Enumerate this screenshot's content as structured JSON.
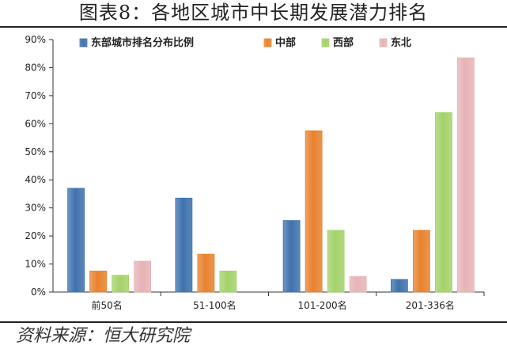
{
  "title": "图表8：各地区城市中长期发展潜力排名",
  "source": "资料来源：恒大研究院",
  "watermark": "",
  "colors": {
    "blue": "#3f72ad",
    "orange": "#e8822e",
    "green": "#a4d26a",
    "pink": "#e7b3b6"
  },
  "chart_data": {
    "type": "bar",
    "categories": [
      "前50名",
      "51-100名",
      "101-200名",
      "201-336名"
    ],
    "series": [
      {
        "name": "东部城市排名分布比例",
        "color": "#3f72ad",
        "values": [
          37,
          33.5,
          25.5,
          4.5
        ]
      },
      {
        "name": "中部",
        "color": "#e8822e",
        "values": [
          7.5,
          13.5,
          57.5,
          22
        ]
      },
      {
        "name": "西部",
        "color": "#a4d26a",
        "values": [
          6,
          7.5,
          22,
          64
        ]
      },
      {
        "name": "东北",
        "color": "#e7b3b6",
        "values": [
          11,
          0,
          5.5,
          83.5
        ]
      }
    ],
    "ylim": [
      0,
      90
    ],
    "yticks": [
      "0%",
      "10%",
      "20%",
      "30%",
      "40%",
      "50%",
      "60%",
      "70%",
      "80%",
      "90%"
    ],
    "grid": false,
    "legend_position": "top"
  }
}
